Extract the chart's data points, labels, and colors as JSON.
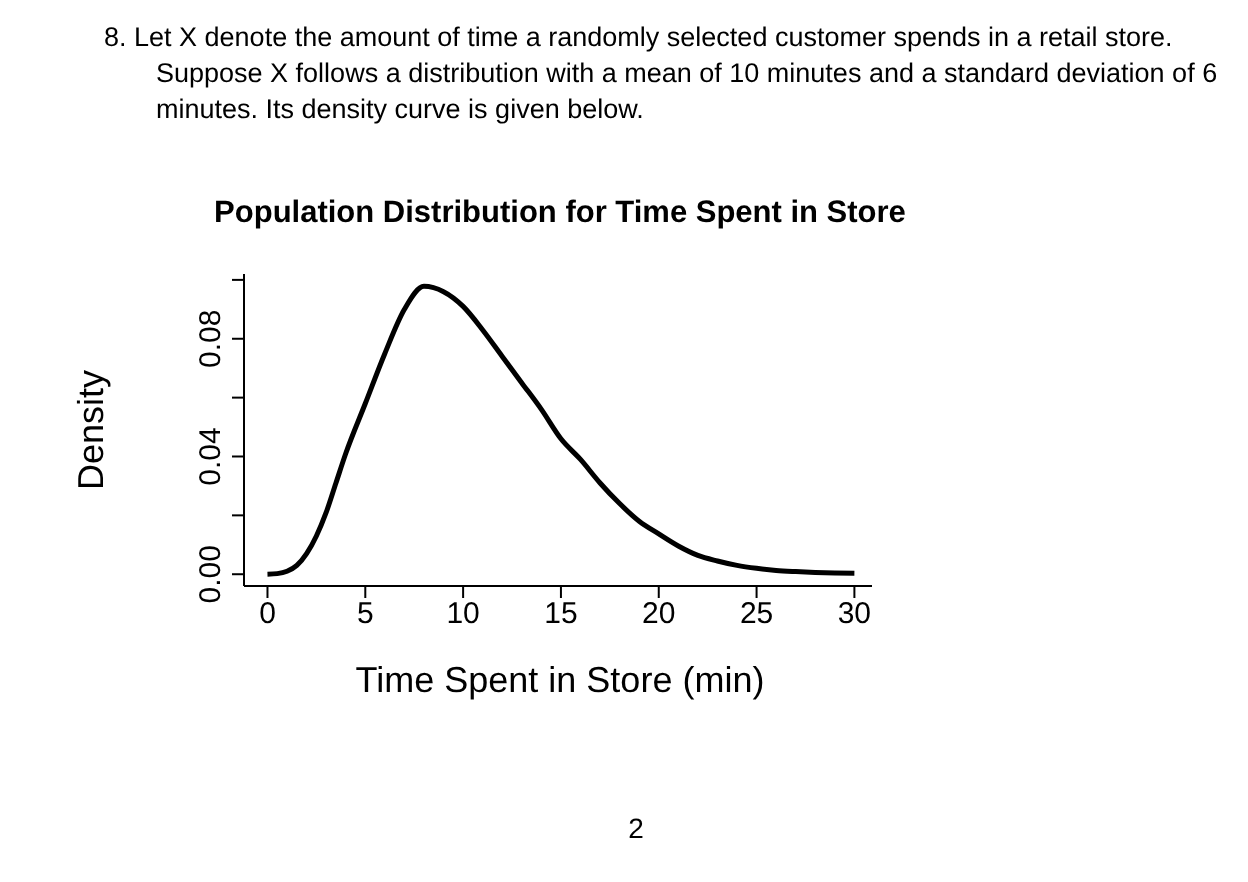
{
  "chart_data": {
    "type": "line",
    "title": "Population Distribution for Time Spent in Store",
    "xlabel": "Time Spent in Store (min)",
    "ylabel": "Density",
    "annotations": [
      "8.  Let X denote the amount of time a randomly selected customer spends in a retail store. Suppose X follows a distribution with a mean of 10 minutes and a standard deviation of 6 minutes. Its density curve is given below.",
      "2"
    ],
    "x": [
      0,
      0.5,
      1,
      1.5,
      2,
      2.5,
      3,
      3.5,
      4,
      5,
      6,
      7,
      8,
      9,
      10,
      11,
      12,
      13,
      14,
      15,
      16,
      17,
      18,
      19,
      20,
      21,
      22,
      23,
      24,
      25,
      26,
      27,
      28,
      29,
      30
    ],
    "values": [
      0,
      0.0002,
      0.001,
      0.003,
      0.007,
      0.013,
      0.021,
      0.031,
      0.041,
      0.058,
      0.075,
      0.09,
      0.0978,
      0.096,
      0.091,
      0.083,
      0.074,
      0.065,
      0.056,
      0.046,
      0.039,
      0.031,
      0.024,
      0.018,
      0.0137,
      0.0096,
      0.0064,
      0.0045,
      0.003,
      0.002,
      0.0013,
      0.0009,
      0.0006,
      0.0004,
      0.0003
    ],
    "color": "#000000",
    "marker": "none",
    "line_style": "solid",
    "xlim": [
      -1.2,
      30.9
    ],
    "ylim": [
      -0.004,
      0.102
    ],
    "xticks": [
      0,
      5,
      10,
      15,
      20,
      25,
      30
    ],
    "yticks": [
      {
        "value": 0,
        "label": "0.00"
      },
      {
        "value": 0.02,
        "label": null
      },
      {
        "value": 0.04,
        "label": "0.04"
      },
      {
        "value": 0.06,
        "label": null
      },
      {
        "value": 0.08,
        "label": "0.08"
      },
      {
        "value": 0.1,
        "label": null
      }
    ]
  }
}
